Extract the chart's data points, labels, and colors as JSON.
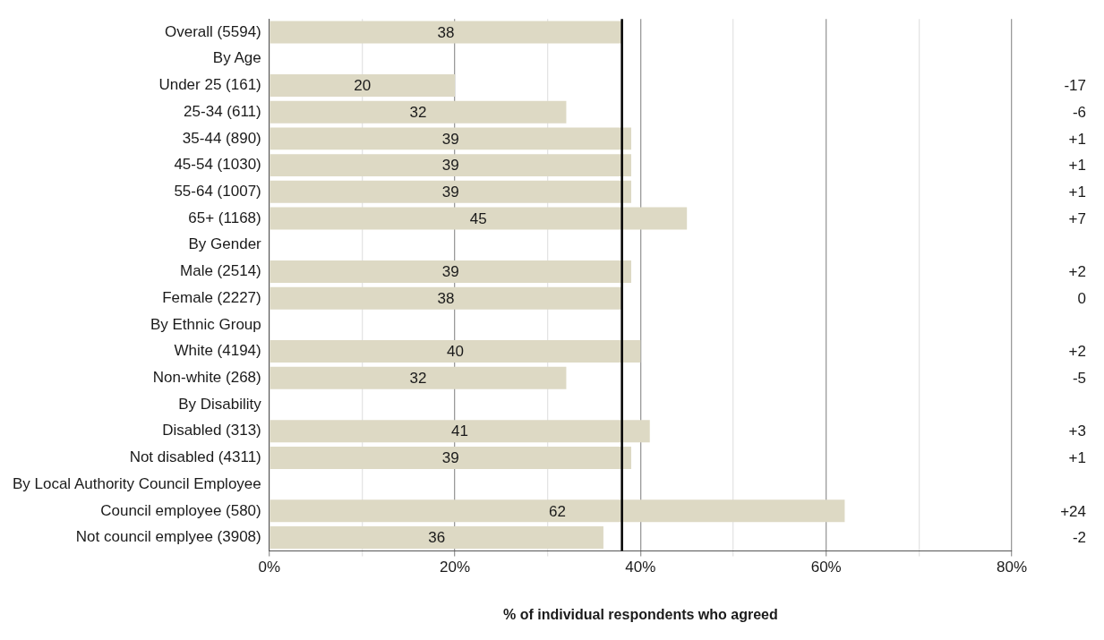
{
  "chart_data": {
    "type": "bar",
    "orientation": "horizontal",
    "xlabel": "% of individual respondents who agreed",
    "categories": [
      "Overall (5594)",
      "By Age",
      "Under 25 (161)",
      "25-34 (611)",
      "35-44 (890)",
      "45-54 (1030)",
      "55-64 (1007)",
      "65+ (1168)",
      "By Gender",
      "Male (2514)",
      "Female (2227)",
      "By Ethnic Group",
      "White (4194)",
      "Non-white (268)",
      "By Disability",
      "Disabled (313)",
      "Not disabled (4311)",
      "By Local Authority Council Employee",
      "Council employee (580)",
      "Not council emplyee (3908)"
    ],
    "values": [
      38,
      null,
      20,
      32,
      39,
      39,
      39,
      45,
      null,
      39,
      38,
      null,
      40,
      32,
      null,
      41,
      39,
      null,
      62,
      36
    ],
    "color": "#ddd9c4",
    "data_labels": true,
    "xlim": [
      0,
      80
    ],
    "xticks": [
      {
        "value": 0,
        "label": "0%"
      },
      {
        "value": 10,
        "label": null
      },
      {
        "value": 20,
        "label": "20%"
      },
      {
        "value": 30,
        "label": null
      },
      {
        "value": 40,
        "label": "40%"
      },
      {
        "value": 50,
        "label": null
      },
      {
        "value": 60,
        "label": "60%"
      },
      {
        "value": 70,
        "label": null
      },
      {
        "value": 80,
        "label": "80%"
      }
    ],
    "grid": "x",
    "ref_lines": [
      {
        "axis": "x",
        "value": 38,
        "color": "#000000"
      }
    ],
    "annotations": [
      "-17",
      "-6",
      "+1",
      "+1",
      "+1",
      "+7",
      "+2",
      "0",
      "+2",
      "-5",
      "+3",
      "+1",
      "+24",
      "-2"
    ]
  }
}
